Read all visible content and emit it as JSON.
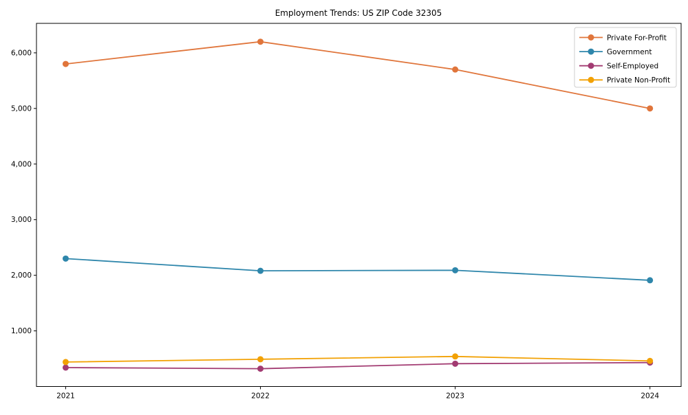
{
  "title": "Employment Trends: US ZIP Code 32305",
  "chart_data": {
    "type": "line",
    "x": [
      2021,
      2022,
      2023,
      2024
    ],
    "xtick_labels": [
      "2021",
      "2022",
      "2023",
      "2024"
    ],
    "series": [
      {
        "name": "Private For-Profit",
        "color": "#e0753b",
        "values": [
          5800,
          6200,
          5700,
          5000
        ]
      },
      {
        "name": "Government",
        "color": "#2e86ab",
        "values": [
          2300,
          2080,
          2090,
          1910
        ]
      },
      {
        "name": "Self-Employed",
        "color": "#a23b72",
        "values": [
          340,
          320,
          410,
          430
        ]
      },
      {
        "name": "Private Non-Profit",
        "color": "#f2a104",
        "values": [
          440,
          490,
          540,
          460
        ]
      }
    ],
    "xlim": [
      2020.85,
      2024.16
    ],
    "ylim": [
      0,
      6530
    ],
    "yticks": [
      1000,
      2000,
      3000,
      4000,
      5000,
      6000
    ],
    "ytick_labels": [
      "1,000",
      "2,000",
      "3,000",
      "4,000",
      "5,000",
      "6,000"
    ],
    "grid": false,
    "legend_position": "upper-right",
    "marker": "circle",
    "frame_color": "#000000",
    "legend_border_color": "#cccccc",
    "legend_background": "#ffffff"
  }
}
